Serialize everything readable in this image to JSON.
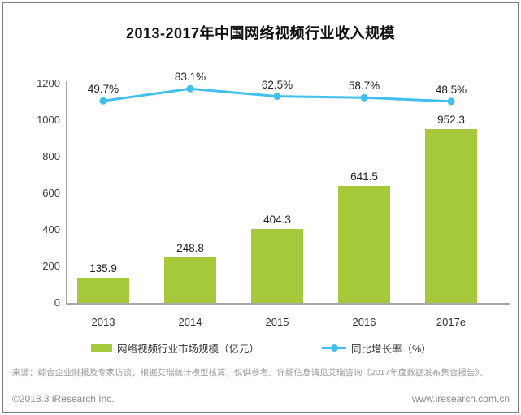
{
  "title": "2013-2017年中国网络视频行业收入规模",
  "chart_data": {
    "type": "bar",
    "categories": [
      "2013",
      "2014",
      "2015",
      "2016",
      "2017e"
    ],
    "series": [
      {
        "name": "网络视频行业市场规模（亿元）",
        "type": "bar",
        "values": [
          135.9,
          248.8,
          404.3,
          641.5,
          952.3
        ],
        "color": "#a6c93c"
      },
      {
        "name": "同比增长率（%）",
        "type": "line",
        "values": [
          49.7,
          83.1,
          62.5,
          58.7,
          48.5
        ],
        "labels": [
          "49.7%",
          "83.1%",
          "62.5%",
          "58.7%",
          "48.5%"
        ],
        "color": "#41c0ef"
      }
    ],
    "title": "2013-2017年中国网络视频行业收入规模",
    "xlabel": "",
    "ylabel": "",
    "y_axis": {
      "min": 0,
      "max": 1200,
      "ticks": [
        0,
        200,
        400,
        600,
        800,
        1000,
        1200
      ]
    },
    "grid": false,
    "legend_position": "bottom"
  },
  "legend": {
    "bar_label": "网络视频行业市场规模（亿元）",
    "line_label": "同比增长率（%）"
  },
  "source_note": "来源：综合企业财报及专家访谈，根据艾瑞统计模型核算，仅供参考。详细信息请见艾瑞咨询《2017年度数据发布集合报告》。",
  "footer": {
    "copyright": "©2018.3 iResearch Inc.",
    "website": "www.iresearch.com.cn"
  },
  "colors": {
    "bar": "#a6c93c",
    "line": "#41c0ef",
    "frame_border": "#7f7f7f",
    "axis": "#a6a6a6",
    "source_text": "#9b9b9b",
    "footer_text": "#8a8a8a"
  }
}
